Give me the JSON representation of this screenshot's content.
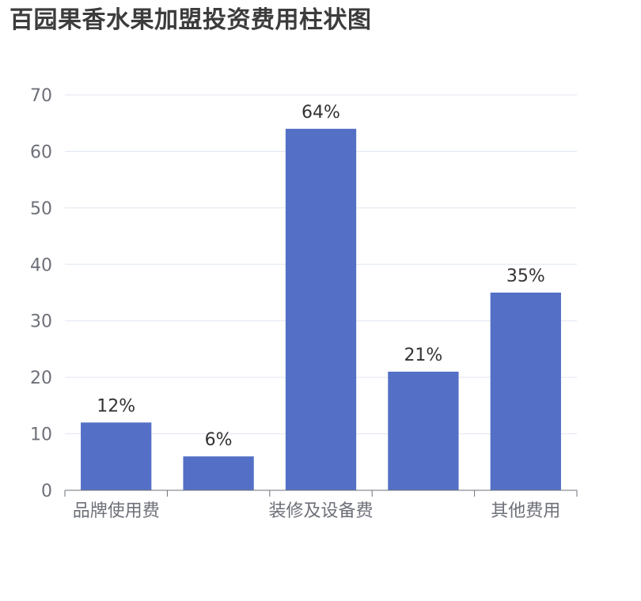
{
  "chart_data": {
    "type": "bar",
    "title": "百园果香水果加盟投资费用柱状图",
    "categories": [
      "品牌使用费",
      "",
      "装修及设备费",
      "",
      "其他费用"
    ],
    "values": [
      12,
      6,
      64,
      21,
      35
    ],
    "data_labels": [
      "12%",
      "6%",
      "64%",
      "21%",
      "35%"
    ],
    "ylim": [
      0,
      70
    ],
    "yticks": [
      0,
      10,
      20,
      30,
      40,
      50,
      60,
      70
    ],
    "grid": true,
    "bar_color": "#5470c6",
    "xlabel": "",
    "ylabel": ""
  }
}
